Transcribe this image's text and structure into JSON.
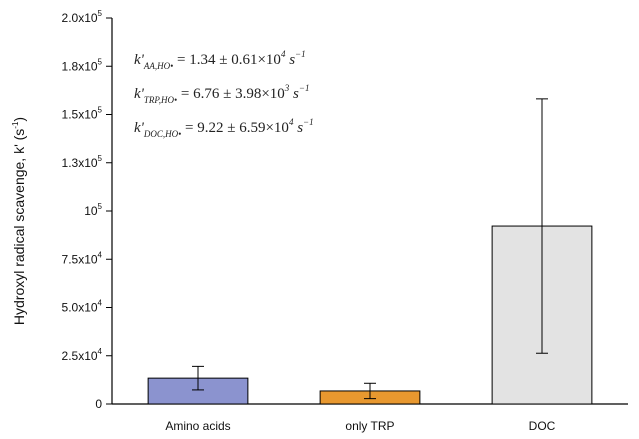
{
  "chart_data": {
    "type": "bar",
    "categories": [
      "Amino acids",
      "only TRP",
      "DOC"
    ],
    "values": [
      13400,
      6760,
      92200
    ],
    "errors": [
      6100,
      3980,
      65900
    ],
    "colors": [
      "#8b93cf",
      "#e8982f",
      "#e3e3e3"
    ],
    "ylabel": "Hydroxyl radical scavenge, k' (s⁻¹)",
    "ylabel_main": "Hydroxyl radical scavenge, k' (s",
    "ylabel_sup": "-1",
    "ylabel_end": ")",
    "ylim": [
      0,
      200000
    ],
    "yticks": [
      {
        "value": 0,
        "base": "0",
        "exp": ""
      },
      {
        "value": 25000,
        "base": "2.5x10",
        "exp": "4"
      },
      {
        "value": 50000,
        "base": "5.0x10",
        "exp": "4"
      },
      {
        "value": 75000,
        "base": "7.5x10",
        "exp": "4"
      },
      {
        "value": 100000,
        "base": "10",
        "exp": "5"
      },
      {
        "value": 125000,
        "base": "1.3x10",
        "exp": "5"
      },
      {
        "value": 150000,
        "base": "1.5x10",
        "exp": "5"
      },
      {
        "value": 175000,
        "base": "1.8x10",
        "exp": "5"
      },
      {
        "value": 200000,
        "base": "2.0x10",
        "exp": "5"
      }
    ],
    "annotations": [
      {
        "sub": "AA,HO•",
        "text": "= 1.34 ± 0.61×10",
        "exp": "4",
        "unit": " s",
        "unit_exp": "−1"
      },
      {
        "sub": "TRP,HO•",
        "text": "= 6.76 ± 3.98×10",
        "exp": "3",
        "unit": " s",
        "unit_exp": "−1"
      },
      {
        "sub": "DOC,HO•",
        "text": "= 9.22 ± 6.59×10",
        "exp": "4",
        "unit": " s",
        "unit_exp": "−1"
      }
    ]
  }
}
